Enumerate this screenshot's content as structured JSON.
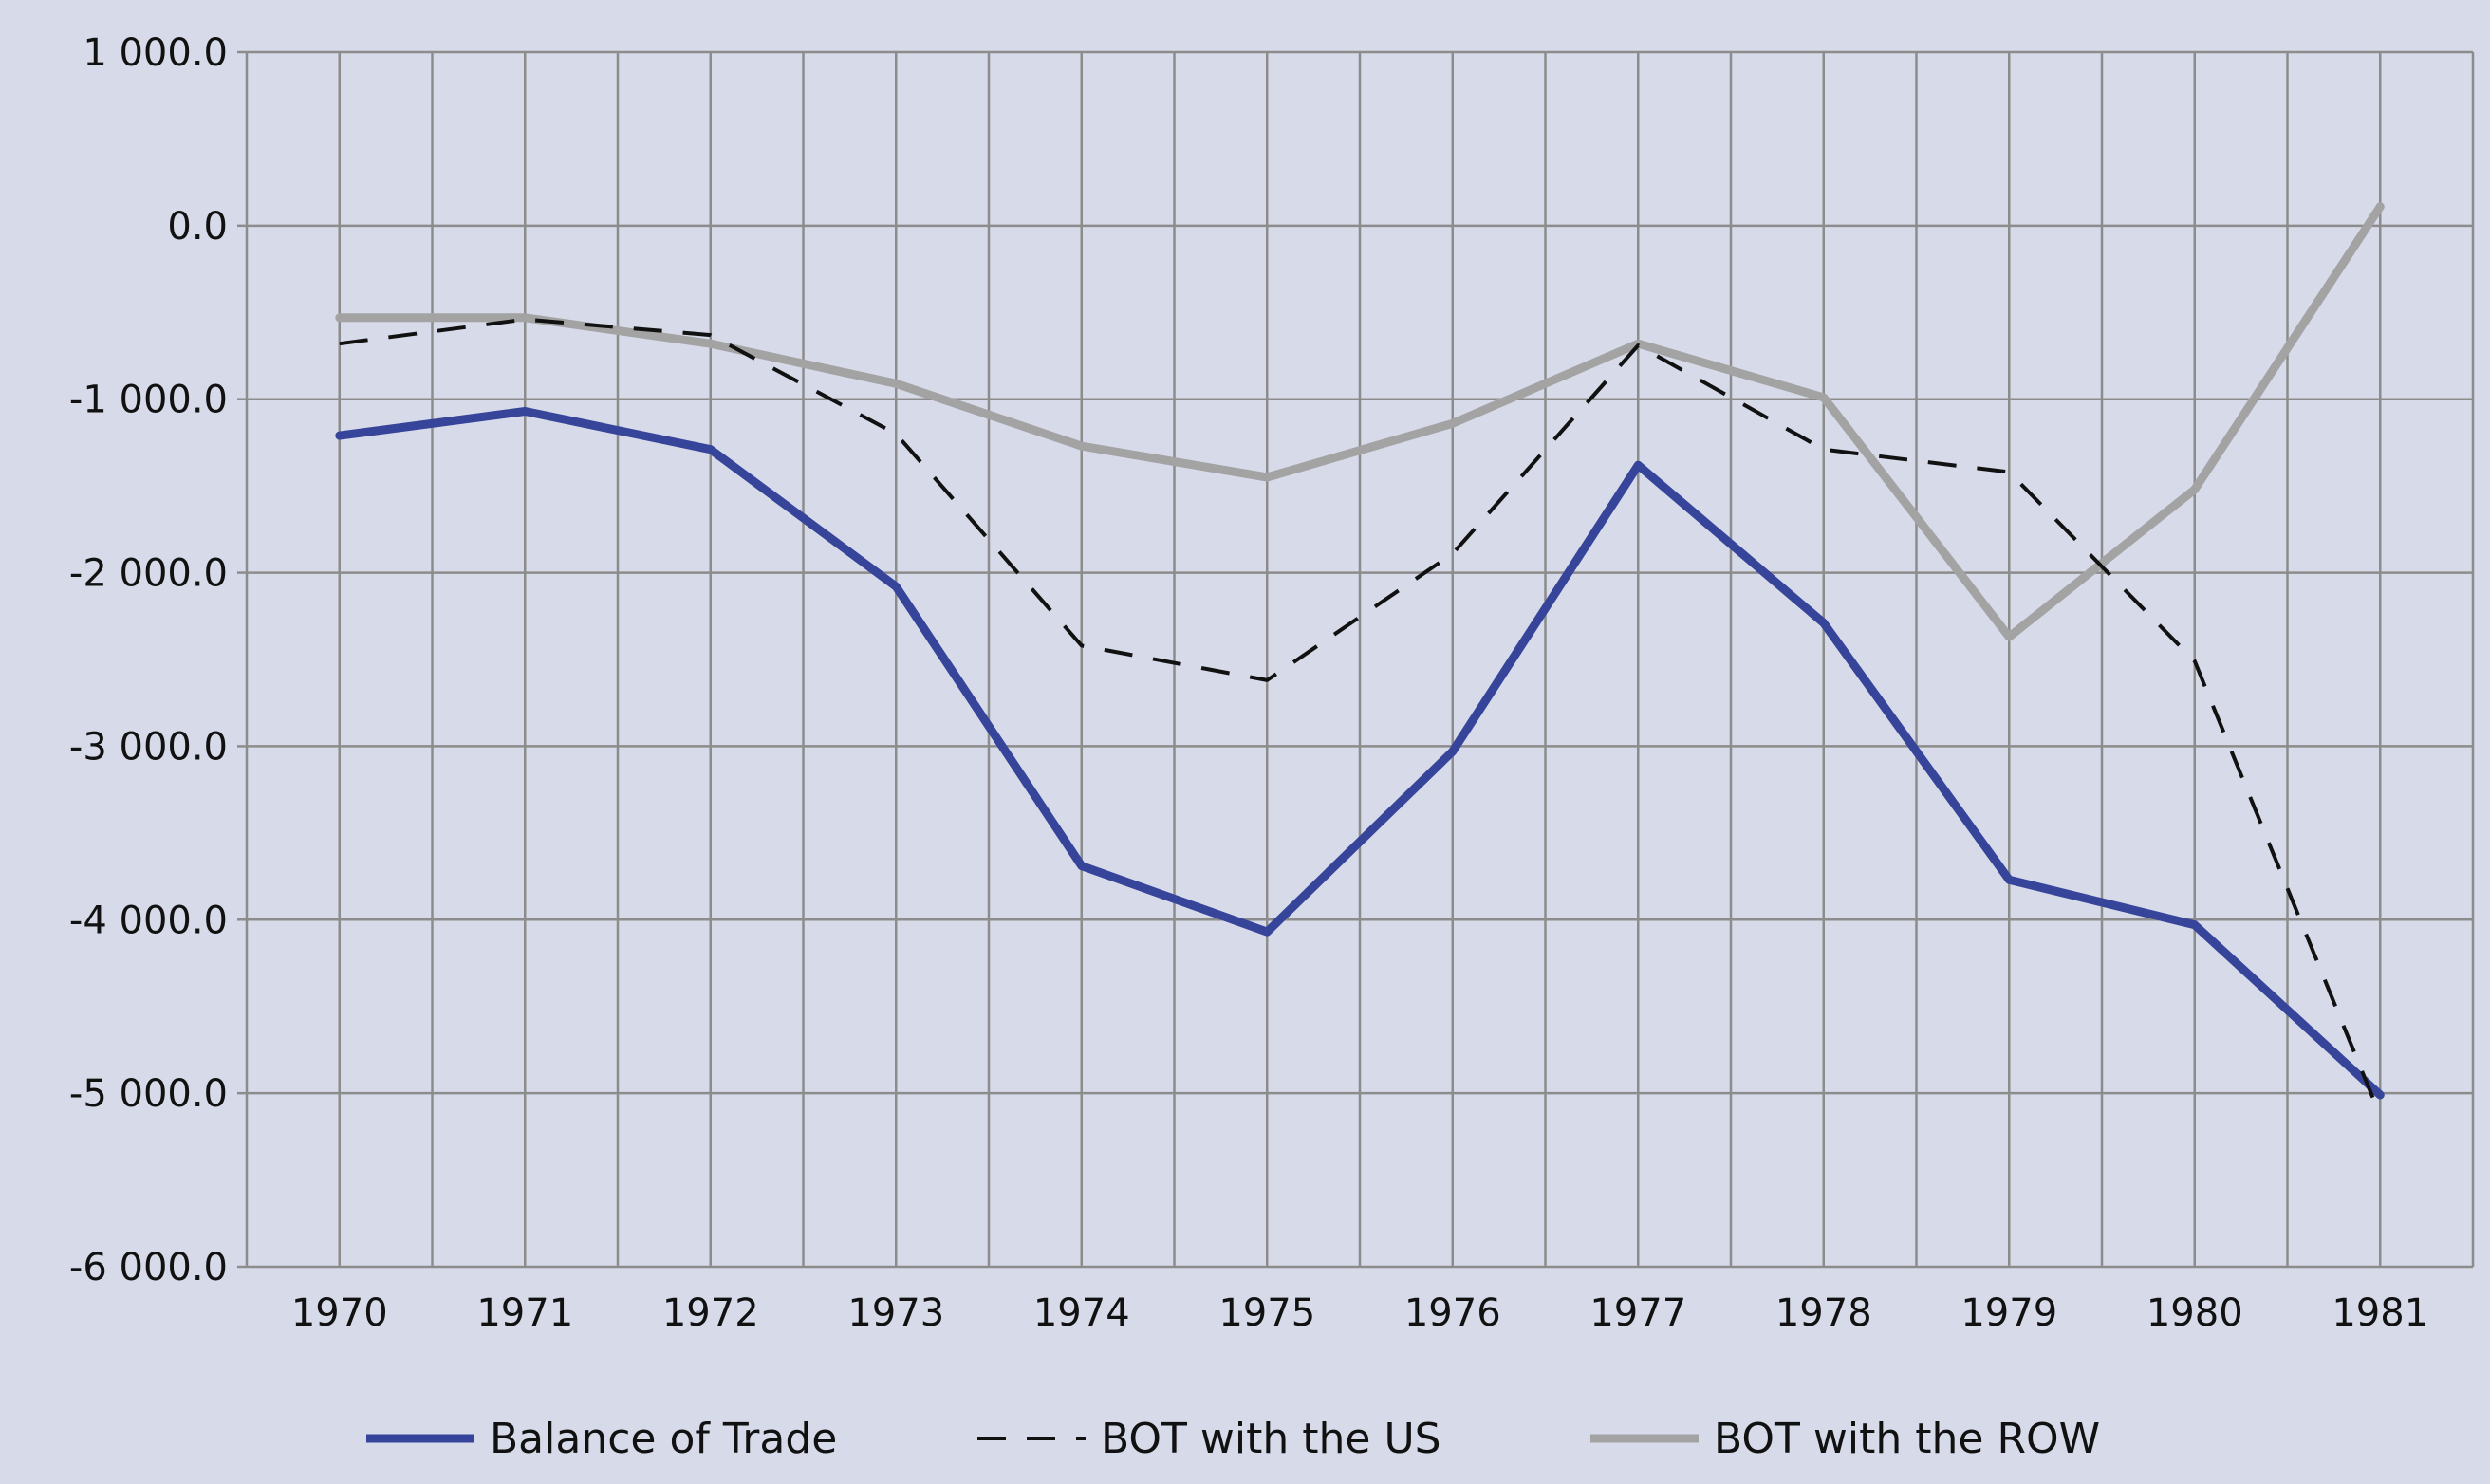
{
  "chart_data": {
    "type": "line",
    "title": "",
    "xlabel": "",
    "ylabel": "",
    "categories": [
      "1970",
      "1971",
      "1972",
      "1973",
      "1974",
      "1975",
      "1976",
      "1977",
      "1978",
      "1979",
      "1980",
      "1981"
    ],
    "ylim": [
      -6000,
      1000
    ],
    "yticks": [
      1000,
      0,
      -1000,
      -2000,
      -3000,
      -4000,
      -5000,
      -6000
    ],
    "ytick_labels": [
      "1 000.0",
      "0.0",
      "-1 000.0",
      "-2 000.0",
      "-3 000.0",
      "-4 000.0",
      "-5 000.0",
      "-6 000.0"
    ],
    "grid": true,
    "legend_position": "bottom",
    "series": [
      {
        "name": "Balance of Trade",
        "color": "#36449a",
        "style": "solid",
        "values": [
          -1210,
          -1070,
          -1290,
          -2080,
          -3690,
          -4070,
          -3030,
          -1380,
          -2290,
          -3770,
          -4030,
          -5010
        ]
      },
      {
        "name": "BOT with the US",
        "color": "#111111",
        "style": "dashed",
        "values": [
          -680,
          -540,
          -630,
          -1200,
          -2420,
          -2620,
          -1890,
          -690,
          -1290,
          -1420,
          -2510,
          -5130
        ]
      },
      {
        "name": "BOT with the ROW",
        "color": "#a3a3a3",
        "style": "solid",
        "values": [
          -530,
          -530,
          -680,
          -910,
          -1270,
          -1450,
          -1140,
          -680,
          -990,
          -2370,
          -1520,
          110
        ]
      }
    ]
  }
}
